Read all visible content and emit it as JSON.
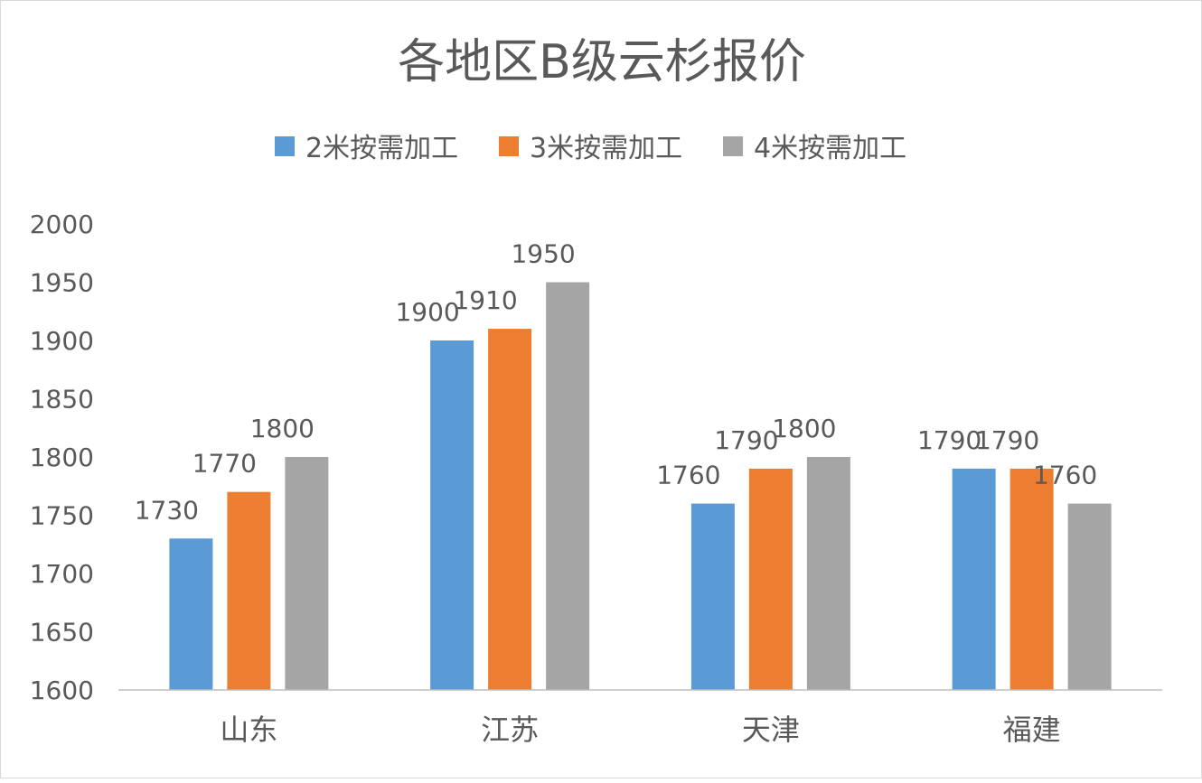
{
  "chart_data": {
    "type": "bar",
    "title": "各地区B级云杉报价",
    "categories": [
      "山东",
      "江苏",
      "天津",
      "福建"
    ],
    "series": [
      {
        "name": "2米按需加工",
        "color": "#5B9BD5",
        "values": [
          1730,
          1900,
          1760,
          1790
        ]
      },
      {
        "name": "3米按需加工",
        "color": "#ED7D31",
        "values": [
          1770,
          1910,
          1790,
          1790
        ]
      },
      {
        "name": "4米按需加工",
        "color": "#A5A5A5",
        "values": [
          1800,
          1950,
          1800,
          1760
        ]
      }
    ],
    "yticks": [
      1600,
      1650,
      1700,
      1750,
      1800,
      1850,
      1900,
      1950,
      2000
    ],
    "ylim": [
      1600,
      2000
    ],
    "xlabel": "",
    "ylabel": "",
    "grid": false,
    "legend": "top",
    "data_labels": true
  }
}
